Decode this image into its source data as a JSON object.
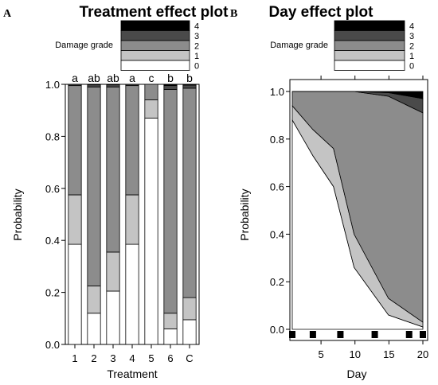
{
  "legend_colors": [
    "#ffffff",
    "#c4c4c4",
    "#8c8c8c",
    "#4a4a4a",
    "#000000"
  ],
  "chart_data": [
    {
      "type": "bar",
      "stacked": true,
      "panel_label": "A",
      "title": "Treatment effect plot",
      "xlabel": "Treatment",
      "ylabel": "Probability",
      "ylim": [
        0,
        1
      ],
      "yticks": [
        "0.0",
        "0.2",
        "0.4",
        "0.6",
        "0.8",
        "1.0"
      ],
      "legend_title": "Damage grade",
      "legend_labels": [
        "0",
        "1",
        "2",
        "3",
        "4"
      ],
      "legend_position": "top",
      "categories": [
        "1",
        "2",
        "3",
        "4",
        "5",
        "6",
        "C"
      ],
      "significance": [
        "a",
        "ab",
        "ab",
        "a",
        "c",
        "b",
        "b"
      ],
      "series": [
        {
          "name": "0",
          "values": [
            0.385,
            0.12,
            0.205,
            0.385,
            0.87,
            0.06,
            0.095
          ]
        },
        {
          "name": "1",
          "values": [
            0.19,
            0.105,
            0.15,
            0.19,
            0.07,
            0.06,
            0.085
          ]
        },
        {
          "name": "2",
          "values": [
            0.42,
            0.765,
            0.635,
            0.42,
            0.06,
            0.86,
            0.805
          ]
        },
        {
          "name": "3",
          "values": [
            0.005,
            0.008,
            0.008,
            0.005,
            0.0,
            0.015,
            0.012
          ]
        },
        {
          "name": "4",
          "values": [
            0.0,
            0.002,
            0.002,
            0.0,
            0.0,
            0.005,
            0.003
          ]
        }
      ]
    },
    {
      "type": "area",
      "stacked": true,
      "panel_label": "B",
      "title": "Day effect plot",
      "xlabel": "Day",
      "ylabel": "Probability",
      "xlim": [
        0,
        20
      ],
      "ylim": [
        0,
        1
      ],
      "xticks": [
        "5",
        "10",
        "15",
        "20"
      ],
      "yticks": [
        "0.0",
        "0.2",
        "0.4",
        "0.6",
        "0.8",
        "1.0"
      ],
      "legend_title": "Damage grade",
      "legend_labels": [
        "0",
        "1",
        "2",
        "3",
        "4"
      ],
      "legend_position": "top",
      "x": [
        1,
        4,
        7,
        10,
        15,
        20
      ],
      "series": [
        {
          "name": "0",
          "values": [
            0.88,
            0.73,
            0.6,
            0.26,
            0.06,
            0.01
          ]
        },
        {
          "name": "1",
          "values": [
            0.06,
            0.11,
            0.16,
            0.14,
            0.07,
            0.02
          ]
        },
        {
          "name": "2",
          "values": [
            0.06,
            0.16,
            0.24,
            0.6,
            0.85,
            0.88
          ]
        },
        {
          "name": "3",
          "values": [
            0.0,
            0.0,
            0.0,
            0.0,
            0.015,
            0.06
          ]
        },
        {
          "name": "4",
          "values": [
            0.0,
            0.0,
            0.0,
            0.0,
            0.005,
            0.03
          ]
        }
      ],
      "rug": [
        1,
        4,
        8,
        13,
        18,
        20
      ]
    }
  ]
}
